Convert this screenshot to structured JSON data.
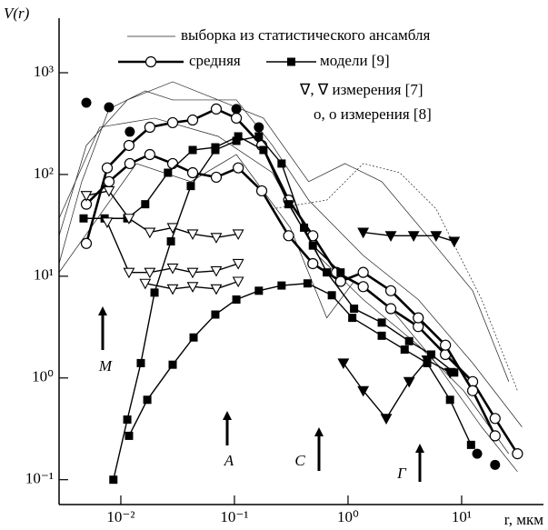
{
  "chart_data": {
    "type": "line",
    "x_label": "r, мкм",
    "y_label": "V(r)",
    "xlog": true,
    "ylog": true,
    "xlim": [
      0.00286,
      52.5
    ],
    "ylim": [
      0.057,
      3437
    ],
    "xticks": [
      {
        "value": 0.01,
        "label": "10⁻²"
      },
      {
        "value": 0.1,
        "label": "10⁻¹"
      },
      {
        "value": 1,
        "label": "10⁰"
      },
      {
        "value": 10,
        "label": "10¹"
      }
    ],
    "yticks": [
      {
        "value": 0.1,
        "label": "10⁻¹"
      },
      {
        "value": 1,
        "label": "10⁰"
      },
      {
        "value": 10,
        "label": "10¹"
      },
      {
        "value": 100,
        "label": "10²"
      },
      {
        "value": 1000,
        "label": "10³"
      }
    ],
    "annotations": [
      "M",
      "A",
      "C",
      "Г"
    ],
    "series": [
      {
        "name": "выборка из статистического ансамбля",
        "color": "#222222",
        "style": "thin",
        "marker": "none",
        "lines": [
          {
            "x": [
              0.00286,
              0.00453,
              0.00787,
              0.0164,
              0.0286,
              0.104,
              0.216,
              0.45,
              1.36,
              4.15,
              12.5,
              34
            ],
            "values": [
              13.3,
              85,
              440,
              663,
              540,
              540,
              193,
              56,
              16,
              5.9,
              1.4,
              0.33
            ]
          },
          {
            "x": [
              0.00286,
              0.00497,
              0.0114,
              0.0286,
              0.0719,
              0.18,
              0.45,
              0.94,
              1.98,
              4.97,
              12.5,
              26
            ],
            "values": [
              25,
              193,
              540,
              815,
              540,
              358,
              85,
              128,
              85,
              25,
              7.2,
              0.92
            ]
          },
          {
            "x": [
              0.00286,
              0.00545,
              0.0137,
              0.0413,
              0.104,
              0.31,
              0.65,
              1.13,
              2.38,
              5.96,
              15,
              31
            ],
            "values": [
              10.9,
              30,
              128,
              85,
              157,
              30,
              3.9,
              8.9,
              4.8,
              1.4,
              0.33,
              0.12
            ]
          },
          {
            "x": [
              0.00286,
              0.0065,
              0.0198,
              0.0719,
              0.216,
              0.54,
              1.36,
              4.15,
              10.4,
              26
            ],
            "values": [
              37,
              291,
              358,
              237,
              104,
              16,
              5.9,
              2.1,
              0.75,
              0.18
            ]
          },
          {
            "x": [
              0.216,
              0.65,
              1.36,
              2.86,
              5.96,
              15,
              31
            ],
            "values": [
              46,
              56,
              128,
              104,
              46,
              5.9,
              0.75
            ]
          }
        ]
      },
      {
        "name": "средняя",
        "color": "#000000",
        "style": "thick",
        "marker": "circle-open",
        "lines": [
          {
            "x": [
              0.00497,
              0.00759,
              0.0118,
              0.018,
              0.0286,
              0.0429,
              0.0692,
              0.104,
              0.174,
              0.3,
              0.49,
              0.79,
              1.36,
              2.38,
              4.15,
              7.2,
              12.5,
              19.7,
              31
            ],
            "values": [
              21,
              116,
              193,
              291,
              323,
              343,
              440,
              358,
              193,
              56,
              25,
              10.9,
              7.9,
              4.8,
              3.2,
              1.7,
              0.92,
              0.4,
              0.18
            ]
          },
          {
            "x": [
              0.00497,
              0.00787,
              0.012,
              0.018,
              0.0286,
              0.0429,
              0.0692,
              0.108,
              0.174,
              0.3,
              0.49,
              0.86,
              1.36,
              2.38,
              4.15,
              7.2,
              12.5,
              19.7
            ],
            "values": [
              51,
              85,
              128,
              157,
              128,
              104,
              94,
              116,
              69,
              25,
              13.3,
              8.9,
              10.9,
              7.2,
              3.9,
              2.1,
              0.75,
              0.27
            ]
          }
        ]
      },
      {
        "name": "модели [9]",
        "color": "#000000",
        "style": "medium",
        "marker": "square",
        "lines": [
          {
            "x": [
              0.0118,
              0.0171,
              0.0286,
              0.0437,
              0.0679,
              0.104,
              0.164,
              0.26,
              0.44,
              0.72,
              1.09,
              1.98,
              3.15,
              4.97,
              7.9,
              12.1
            ],
            "values": [
              0.27,
              0.61,
              1.35,
              2.5,
              4.2,
              5.9,
              7.2,
              8.1,
              8.5,
              6.5,
              3.9,
              2.6,
              1.9,
              1.4,
              0.61,
              0.22
            ]
          },
          {
            "x": [
              0.0086,
              0.0114,
              0.015,
              0.0198,
              0.0276,
              0.0413,
              0.0679,
              0.104,
              0.164,
              0.26,
              0.41,
              0.65,
              1.13,
              1.98,
              3.45,
              5.4,
              8.6
            ],
            "values": [
              0.1,
              0.39,
              1.4,
              6.9,
              22,
              77,
              174,
              214,
              237,
              128,
              30,
              10.9,
              4.8,
              3.5,
              2.3,
              1.7,
              1.13
            ]
          },
          {
            "x": [
              0.0047,
              0.0072,
              0.0114,
              0.0164,
              0.026,
              0.0429,
              0.0679,
              0.108,
              0.18,
              0.3,
              0.49,
              0.86
            ],
            "values": [
              37,
              37,
              37,
              51,
              104,
              174,
              185,
              237,
              174,
              51,
              20,
              10.9
            ]
          }
        ]
      },
      {
        "name": "∇, ∇  измерения [7]",
        "color": "#000000",
        "style": "medium",
        "marker": "triangle",
        "lines": [
          {
            "filled": false,
            "x": [
              0.00497,
              0.00787,
              0.0118,
              0.018,
              0.0286,
              0.0429,
              0.0692,
              0.108
            ],
            "values": [
              62,
              69,
              37,
              27,
              30,
              26,
              24,
              26
            ]
          },
          {
            "filled": false,
            "x": [
              0.00759,
              0.0118,
              0.018,
              0.0286,
              0.0429,
              0.0692,
              0.108
            ],
            "values": [
              34,
              10.9,
              10.9,
              12,
              10.9,
              11.3,
              13.3
            ]
          },
          {
            "filled": false,
            "x": [
              0.0164,
              0.0286,
              0.0429,
              0.0692,
              0.108
            ],
            "values": [
              8.5,
              7.5,
              7.9,
              7.5,
              8.9
            ]
          },
          {
            "filled": true,
            "x": [
              0.91,
              1.36,
              2.17,
              3.45,
              4.97,
              7.9
            ],
            "values": [
              1.4,
              0.75,
              0.4,
              0.92,
              1.5,
              1.13
            ]
          },
          {
            "filled": true,
            "x": [
              1.36,
              2.38,
              3.78,
              5.96,
              8.6
            ],
            "values": [
              27,
              25,
              25,
              25,
              22
            ]
          }
        ]
      },
      {
        "name": "o, o  измерения [8]",
        "color": "#000000",
        "style": "none",
        "marker": "circle-filled",
        "lines": [
          {
            "x": [
              0.00497,
              0.00787,
              0.012,
              0.104,
              0.164,
              13.7,
              19.7
            ],
            "values": [
              507,
              458,
              263,
              440,
              291,
              0.18,
              0.14
            ]
          }
        ]
      }
    ]
  }
}
